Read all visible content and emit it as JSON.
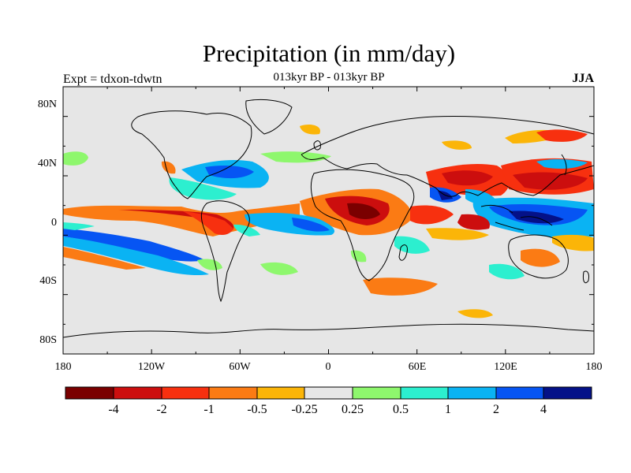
{
  "map": {
    "title": "Precipitation (in mm/day)",
    "subtitle": "013kyr BP - 013kyr BP",
    "left_label": "Expt = tdxon-tdwtn",
    "right_label": "JJA",
    "lat_ticks": [
      "80N",
      "40N",
      "0",
      "40S",
      "80S"
    ],
    "lon_ticks": [
      "180",
      "120W",
      "60W",
      "0",
      "60E",
      "120E",
      "180"
    ],
    "colorbar": {
      "colors": [
        "#7a0000",
        "#cc0e0e",
        "#f7300f",
        "#fb7b14",
        "#fbb508",
        "#e6e6e6",
        "#8ef76d",
        "#2cefcf",
        "#0ab3f3",
        "#0655f3",
        "#041188"
      ],
      "labels": [
        "-4",
        "-2",
        "-1",
        "-0.5",
        "-0.25",
        "0.25",
        "0.5",
        "1",
        "2",
        "4"
      ]
    }
  }
}
